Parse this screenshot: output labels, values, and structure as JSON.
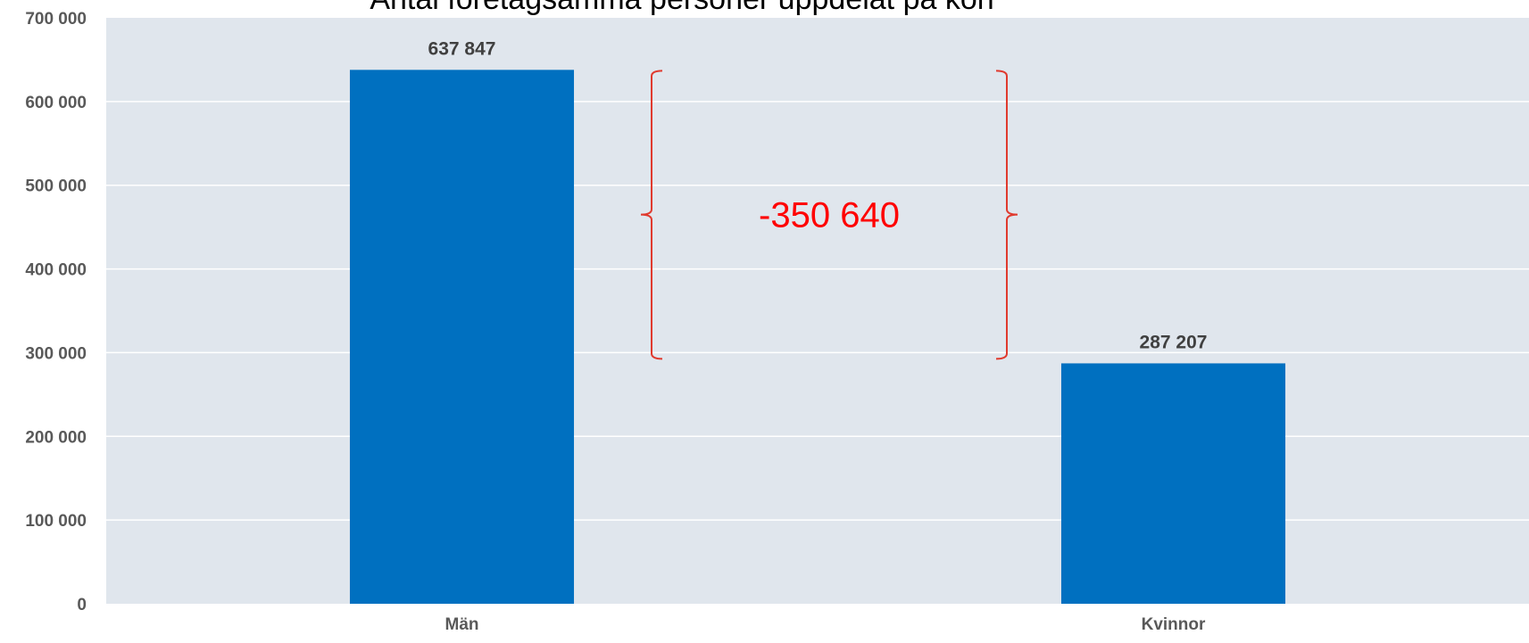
{
  "chart_data": {
    "type": "bar",
    "title": "Antal företagsamma personer uppdelat på kön",
    "categories": [
      "Män",
      "Kvinnor"
    ],
    "values": [
      637847,
      287207
    ],
    "value_labels": [
      "637 847",
      "287 207"
    ],
    "xlabel": "",
    "ylabel": "",
    "ylim": [
      0,
      700000
    ],
    "y_ticks": [
      0,
      100000,
      200000,
      300000,
      400000,
      500000,
      600000,
      700000
    ],
    "y_tick_labels": [
      "0",
      "100 000",
      "200 000",
      "300 000",
      "400 000",
      "500 000",
      "600 000",
      "700 000"
    ],
    "grid": true,
    "legend": "none",
    "annotation": {
      "text": "-350 640",
      "from_value": 637847,
      "to_value": 287207
    },
    "colors": {
      "bar": "#0070C0",
      "plot_background": "#E0E6ED",
      "gridline": "#FFFFFF",
      "annotation": "#FF0000",
      "bracket": "#E03A2E"
    }
  }
}
